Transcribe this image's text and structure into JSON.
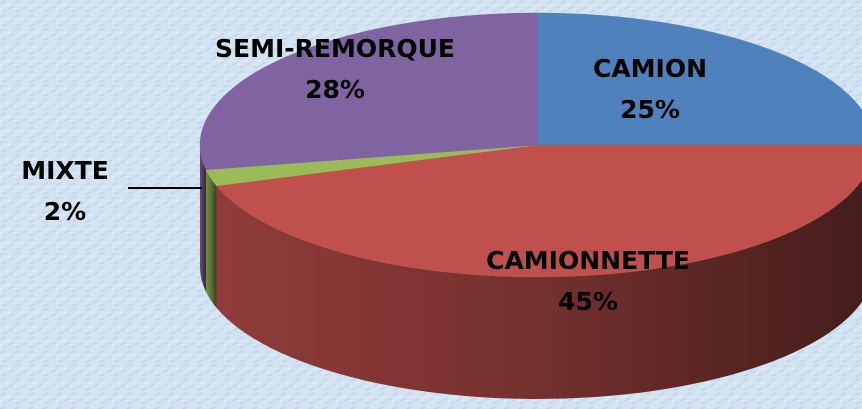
{
  "chart_data": {
    "type": "pie3d",
    "categories": [
      "CAMION",
      "CAMIONNETTE",
      "MIXTE",
      "SEMI-REMORQUE"
    ],
    "values": [
      25,
      45,
      2,
      28
    ],
    "value_labels": [
      "25%",
      "45%",
      "2%",
      "28%"
    ],
    "colors": [
      "#4f81bd",
      "#c0504d",
      "#9bbb59",
      "#8064a2"
    ],
    "start": "top",
    "direction": "clockwise"
  }
}
